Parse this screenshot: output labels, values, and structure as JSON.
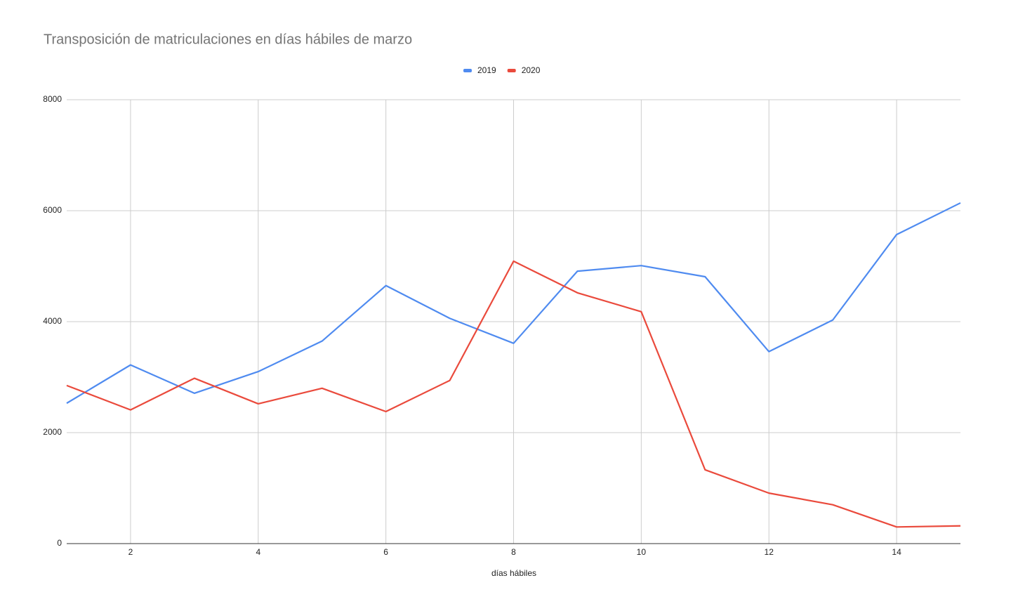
{
  "chart_data": {
    "type": "line",
    "title": "Transposición de matriculaciones en días hábiles de marzo",
    "x_label": "días hábiles",
    "x": [
      1,
      2,
      3,
      4,
      5,
      6,
      7,
      8,
      9,
      10,
      11,
      12,
      13,
      14,
      15
    ],
    "series": [
      {
        "name": "2019",
        "color": "#4f8bf0",
        "values": [
          2530,
          3220,
          2710,
          3100,
          3650,
          4650,
          4060,
          3610,
          4910,
          5010,
          4810,
          3460,
          4030,
          5570,
          6140
        ]
      },
      {
        "name": "2020",
        "color": "#ea4a3c",
        "values": [
          2850,
          2410,
          2980,
          2520,
          2800,
          2380,
          2940,
          5090,
          4520,
          4180,
          1330,
          910,
          700,
          300,
          320
        ]
      }
    ],
    "xlim": [
      1,
      15
    ],
    "xticks": [
      2,
      4,
      6,
      8,
      10,
      12,
      14
    ],
    "ylim": [
      0,
      8000
    ],
    "yticks": [
      0,
      2000,
      4000,
      6000,
      8000
    ],
    "grid": true,
    "legend": "top"
  }
}
